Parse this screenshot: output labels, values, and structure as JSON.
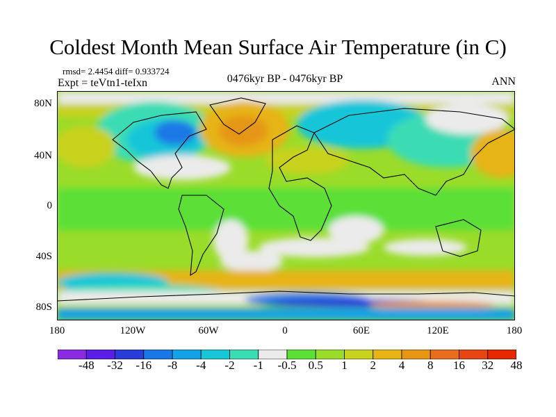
{
  "title": "Coldest Month Mean Surface Air Temperature (in C)",
  "stats": "rmsd= 2.4454  diff= 0.933724",
  "expt": "Expt = teVtn1-teIxn",
  "period": "0476kyr BP - 0476kyr BP",
  "season": "ANN",
  "lat_labels": [
    "80N",
    "40N",
    "0",
    "40S",
    "80S"
  ],
  "lon_labels": [
    "180",
    "120W",
    "60W",
    "0",
    "60E",
    "120E",
    "180"
  ],
  "colorbar": {
    "colors": [
      "#8a2be2",
      "#5a1ee6",
      "#2a3cd8",
      "#1a78e6",
      "#14a2e6",
      "#19c6d8",
      "#3adcb4",
      "#ebebeb",
      "#5ce038",
      "#9adc2a",
      "#c8d21e",
      "#e6b414",
      "#e69614",
      "#e66e1e",
      "#e64614",
      "#e62800"
    ],
    "labels": [
      "-48",
      "-32",
      "-16",
      "-8",
      "-4",
      "-2",
      "-1",
      "-0.5",
      "0.5",
      "1",
      "2",
      "4",
      "8",
      "16",
      "32",
      "48"
    ]
  }
}
